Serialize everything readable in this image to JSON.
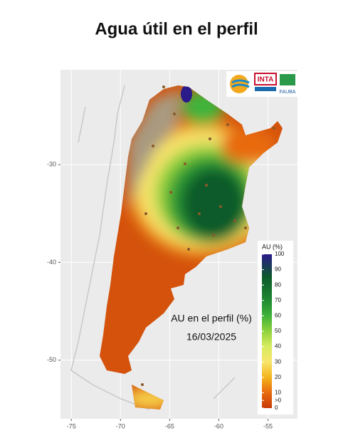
{
  "title": "Agua útil en el perfil",
  "logos": [
    "INTA",
    "FAUBA"
  ],
  "map": {
    "annotation": "AU en el perfil (%)",
    "date": "16/03/2025",
    "xlim": [
      -76.1,
      -52
    ],
    "ylim": [
      -56,
      -20.3
    ],
    "xticks": [
      -75,
      -70,
      -65,
      -60,
      -55
    ],
    "yticks": [
      -30,
      -40,
      -50
    ],
    "grid": true,
    "legend": {
      "title": "AU (%)",
      "lim": [
        0,
        100
      ],
      "ticks": [
        100,
        90,
        80,
        70,
        60,
        50,
        40,
        30,
        20,
        10,
        {
          "value": 5,
          "label": ">0"
        },
        0
      ]
    }
  }
}
